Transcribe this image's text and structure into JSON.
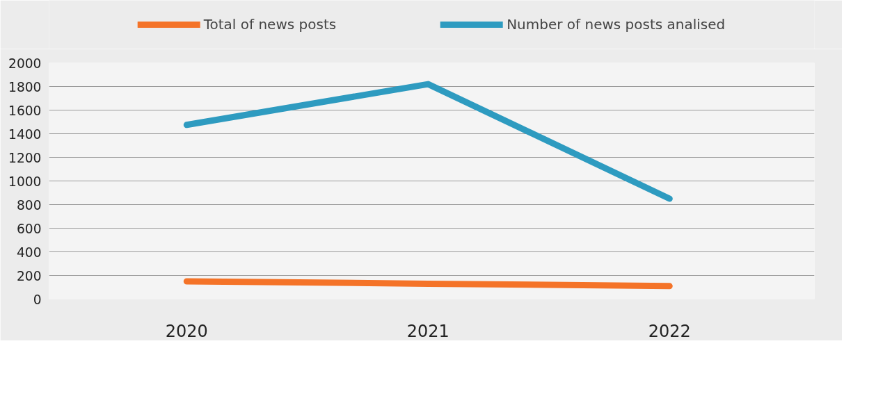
{
  "chart_data": {
    "type": "line",
    "categories": [
      "2020",
      "2021",
      "2022"
    ],
    "series": [
      {
        "name": "Total of news posts",
        "color": "#f47328",
        "values": [
          150,
          130,
          110
        ]
      },
      {
        "name": "Number of news posts analised",
        "color": "#2e9bc0",
        "values": [
          1475,
          1820,
          850
        ]
      }
    ],
    "ylim": [
      0,
      2000
    ],
    "yticks": [
      0,
      200,
      400,
      600,
      800,
      1000,
      1200,
      1400,
      1600,
      1800,
      2000
    ],
    "grid": "y",
    "legend": "top",
    "marker": "none",
    "line_style": "solid"
  }
}
